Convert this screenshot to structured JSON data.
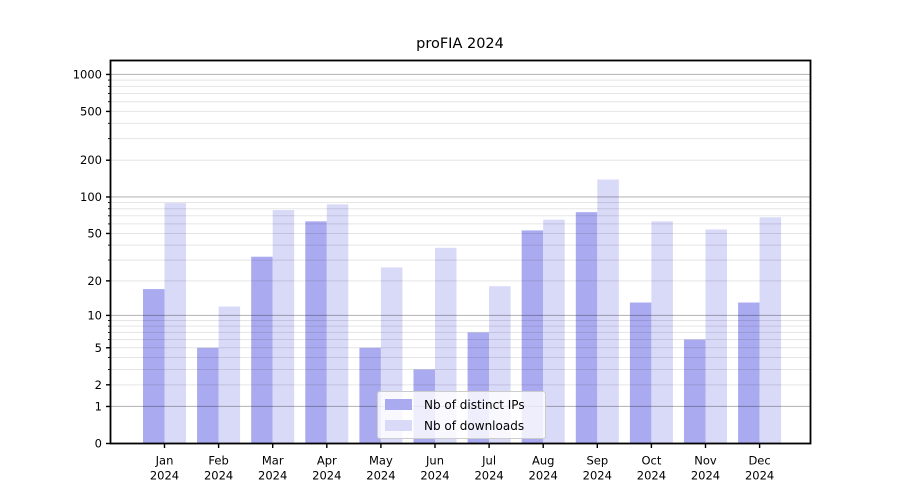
{
  "chart_data": {
    "type": "bar",
    "title": "proFIA 2024",
    "categories": [
      "Jan 2024",
      "Feb 2024",
      "Mar 2024",
      "Apr 2024",
      "May 2024",
      "Jun 2024",
      "Jul 2024",
      "Aug 2024",
      "Sep 2024",
      "Oct 2024",
      "Nov 2024",
      "Dec 2024"
    ],
    "series": [
      {
        "name": "Nb of distinct IPs",
        "color": "#aaaaf0",
        "values": [
          17,
          5,
          32,
          63,
          5,
          3,
          7,
          53,
          75,
          13,
          6,
          13
        ]
      },
      {
        "name": "Nb of downloads",
        "color": "#d9d9f8",
        "values": [
          89,
          12,
          78,
          87,
          26,
          38,
          18,
          65,
          139,
          63,
          54,
          68
        ]
      }
    ],
    "yscale": "log1p",
    "yticks": [
      0,
      1,
      2,
      5,
      10,
      20,
      50,
      100,
      200,
      500,
      1000
    ],
    "ytick_labels": [
      "0",
      "1",
      "2",
      "5",
      "10",
      "20",
      "50",
      "100",
      "200",
      "500",
      "1000"
    ],
    "major_grid_values": [
      1,
      10,
      100,
      1000
    ],
    "minor_grid_values": [
      2,
      3,
      4,
      5,
      6,
      7,
      8,
      9,
      20,
      30,
      40,
      50,
      60,
      70,
      80,
      90,
      200,
      300,
      400,
      500,
      600,
      700,
      800,
      900
    ],
    "ylim": [
      0,
      1300
    ],
    "grid": true,
    "legend_position": "lower center",
    "colors": {
      "bar_dark": "#aaaaf0",
      "bar_light": "#d9d9f8",
      "major_grid": "rgba(0,0,0,0.27)",
      "minor_grid": "rgba(0,0,0,0.10)",
      "frame": "#000000"
    }
  }
}
